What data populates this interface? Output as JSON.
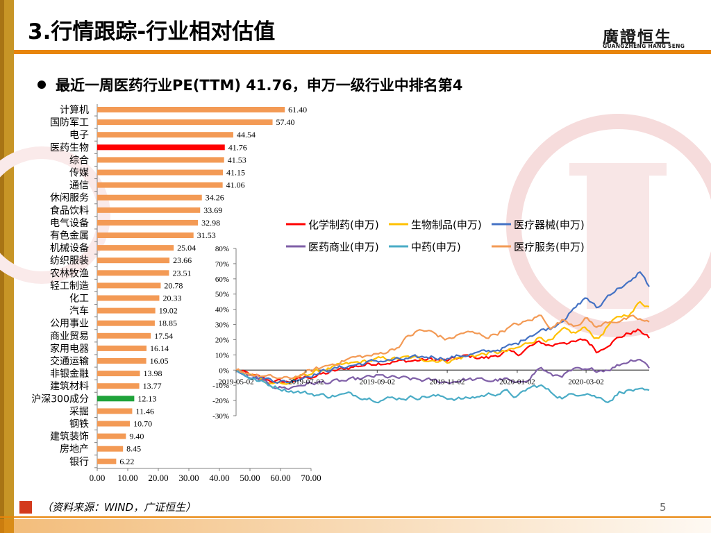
{
  "slide": {
    "title": "3.行情跟踪-行业相对估值",
    "logo_text": "廣證恒生",
    "logo_sub": "GUANGZHENG HANG SENG",
    "bullet": "最近一周医药行业PE(TTM) 41.76，申万一级行业中排名第4",
    "source": "（资料来源：WIND，广证恒生）",
    "page_number": "5"
  },
  "colors": {
    "bar": "#f39a55",
    "highlight_medical": "#ff0000",
    "highlight_hs300": "#1fa33a",
    "accent": "#e8850b",
    "series_chem": "#ff0000",
    "series_bio": "#ffc000",
    "series_device": "#4472c4",
    "series_commerce": "#7f5fa7",
    "series_tcm": "#4aacc6",
    "series_service": "#f39a55"
  },
  "chart_data": [
    {
      "type": "bar",
      "orientation": "horizontal",
      "title": "",
      "categories": [
        "计算机",
        "国防军工",
        "电子",
        "医药生物",
        "综合",
        "传媒",
        "通信",
        "休闲服务",
        "食品饮料",
        "电气设备",
        "有色金属",
        "机械设备",
        "纺织服装",
        "农林牧渔",
        "轻工制造",
        "化工",
        "汽车",
        "公用事业",
        "商业贸易",
        "家用电器",
        "交通运输",
        "非银金融",
        "建筑材料",
        "沪深300成分",
        "采掘",
        "钢铁",
        "建筑装饰",
        "房地产",
        "银行"
      ],
      "values": [
        61.4,
        57.4,
        44.54,
        41.76,
        41.53,
        41.15,
        41.06,
        34.26,
        33.69,
        32.98,
        31.53,
        25.04,
        23.66,
        23.51,
        20.78,
        20.33,
        19.02,
        18.85,
        17.54,
        16.14,
        16.05,
        13.98,
        13.77,
        12.13,
        11.46,
        10.7,
        9.4,
        8.45,
        6.22
      ],
      "value_labels": [
        "61.40",
        "57.40",
        "44.54",
        "41.76",
        "41.53",
        "41.15",
        "41.06",
        "34.26",
        "33.69",
        "32.98",
        "31.53",
        "25.04",
        "23.66",
        "23.51",
        "20.78",
        "20.33",
        "19.02",
        "18.85",
        "17.54",
        "16.14",
        "16.05",
        "13.98",
        "13.77",
        "12.13",
        "11.46",
        "10.70",
        "9.40",
        "8.45",
        "6.22"
      ],
      "highlight": {
        "医药生物": "red",
        "沪深300成分": "green"
      },
      "xlim": [
        0,
        70
      ],
      "xticks": [
        "0.00",
        "10.00",
        "20.00",
        "30.00",
        "40.00",
        "50.00",
        "60.00",
        "70.00"
      ]
    },
    {
      "type": "line",
      "title": "",
      "ylim": [
        -0.3,
        0.8
      ],
      "yticks": [
        "80%",
        "70%",
        "60%",
        "50%",
        "40%",
        "30%",
        "20%",
        "10%",
        "0%",
        "-10%",
        "-20%",
        "-30%"
      ],
      "xticks": [
        "2019-05-02",
        "2019-07-02",
        "2019-09-02",
        "2019-11-02",
        "2020-01-02",
        "2020-03-02"
      ],
      "x_range_days": [
        0,
        360
      ],
      "xtick_days": [
        0,
        61,
        123,
        184,
        245,
        305
      ],
      "legend": [
        "化学制药(申万)",
        "生物制品(申万)",
        "医疗器械(申万)",
        "医药商业(申万)",
        "中药(申万)",
        "医疗服务(申万)"
      ],
      "legend_position": "top-right",
      "series": [
        {
          "name": "化学制药(申万)",
          "anchors": [
            [
              0,
              0
            ],
            [
              15,
              -0.04
            ],
            [
              30,
              -0.07
            ],
            [
              45,
              -0.08
            ],
            [
              60,
              -0.05
            ],
            [
              80,
              -0.02
            ],
            [
              100,
              0.02
            ],
            [
              123,
              0.05
            ],
            [
              150,
              0.06
            ],
            [
              170,
              0.07
            ],
            [
              184,
              0.06
            ],
            [
              200,
              0.09
            ],
            [
              220,
              0.08
            ],
            [
              235,
              0.12
            ],
            [
              245,
              0.1
            ],
            [
              255,
              0.15
            ],
            [
              265,
              0.18
            ],
            [
              275,
              0.16
            ],
            [
              285,
              0.19
            ],
            [
              295,
              0.18
            ],
            [
              305,
              0.2
            ],
            [
              315,
              0.12
            ],
            [
              325,
              0.18
            ],
            [
              335,
              0.22
            ],
            [
              345,
              0.25
            ],
            [
              352,
              0.26
            ],
            [
              360,
              0.21
            ]
          ]
        },
        {
          "name": "生物制品(申万)",
          "anchors": [
            [
              0,
              0
            ],
            [
              15,
              -0.04
            ],
            [
              30,
              -0.08
            ],
            [
              45,
              -0.09
            ],
            [
              60,
              -0.03
            ],
            [
              80,
              0.01
            ],
            [
              100,
              0.04
            ],
            [
              123,
              0.07
            ],
            [
              150,
              0.08
            ],
            [
              170,
              0.07
            ],
            [
              184,
              0.06
            ],
            [
              200,
              0.09
            ],
            [
              220,
              0.11
            ],
            [
              235,
              0.12
            ],
            [
              245,
              0.14
            ],
            [
              255,
              0.18
            ],
            [
              265,
              0.22
            ],
            [
              275,
              0.19
            ],
            [
              285,
              0.26
            ],
            [
              295,
              0.24
            ],
            [
              305,
              0.28
            ],
            [
              315,
              0.2
            ],
            [
              325,
              0.3
            ],
            [
              335,
              0.35
            ],
            [
              345,
              0.38
            ],
            [
              352,
              0.45
            ],
            [
              360,
              0.42
            ]
          ]
        },
        {
          "name": "医疗器械(申万)",
          "anchors": [
            [
              0,
              0
            ],
            [
              15,
              -0.04
            ],
            [
              30,
              -0.06
            ],
            [
              45,
              -0.08
            ],
            [
              60,
              -0.04
            ],
            [
              80,
              0.0
            ],
            [
              100,
              0.03
            ],
            [
              123,
              0.06
            ],
            [
              150,
              0.07
            ],
            [
              170,
              0.09
            ],
            [
              184,
              0.08
            ],
            [
              200,
              0.1
            ],
            [
              220,
              0.12
            ],
            [
              235,
              0.15
            ],
            [
              245,
              0.17
            ],
            [
              255,
              0.23
            ],
            [
              265,
              0.26
            ],
            [
              275,
              0.28
            ],
            [
              285,
              0.34
            ],
            [
              295,
              0.4
            ],
            [
              305,
              0.48
            ],
            [
              315,
              0.4
            ],
            [
              325,
              0.5
            ],
            [
              335,
              0.55
            ],
            [
              345,
              0.58
            ],
            [
              352,
              0.65
            ],
            [
              360,
              0.55
            ]
          ]
        },
        {
          "name": "医药商业(申万)",
          "anchors": [
            [
              0,
              0
            ],
            [
              15,
              -0.05
            ],
            [
              30,
              -0.1
            ],
            [
              45,
              -0.12
            ],
            [
              60,
              -0.09
            ],
            [
              80,
              -0.08
            ],
            [
              100,
              -0.07
            ],
            [
              123,
              -0.04
            ],
            [
              150,
              -0.06
            ],
            [
              170,
              -0.07
            ],
            [
              184,
              -0.08
            ],
            [
              200,
              -0.06
            ],
            [
              220,
              -0.07
            ],
            [
              235,
              -0.06
            ],
            [
              245,
              -0.1
            ],
            [
              255,
              -0.05
            ],
            [
              265,
              0.02
            ],
            [
              275,
              -0.04
            ],
            [
              285,
              -0.03
            ],
            [
              295,
              0.0
            ],
            [
              305,
              -0.01
            ],
            [
              315,
              0.0
            ],
            [
              325,
              0.01
            ],
            [
              335,
              0.04
            ],
            [
              345,
              0.07
            ],
            [
              352,
              0.08
            ],
            [
              360,
              0.02
            ]
          ]
        },
        {
          "name": "中药(申万)",
          "anchors": [
            [
              0,
              0
            ],
            [
              15,
              -0.06
            ],
            [
              30,
              -0.1
            ],
            [
              45,
              -0.13
            ],
            [
              60,
              -0.15
            ],
            [
              80,
              -0.17
            ],
            [
              100,
              -0.16
            ],
            [
              123,
              -0.19
            ],
            [
              150,
              -0.18
            ],
            [
              170,
              -0.17
            ],
            [
              184,
              -0.18
            ],
            [
              200,
              -0.19
            ],
            [
              220,
              -0.16
            ],
            [
              235,
              -0.14
            ],
            [
              245,
              -0.18
            ],
            [
              255,
              -0.12
            ],
            [
              265,
              -0.1
            ],
            [
              275,
              -0.15
            ],
            [
              285,
              -0.18
            ],
            [
              295,
              -0.16
            ],
            [
              305,
              -0.14
            ],
            [
              315,
              -0.18
            ],
            [
              325,
              -0.2
            ],
            [
              335,
              -0.14
            ],
            [
              345,
              -0.13
            ],
            [
              352,
              -0.14
            ],
            [
              360,
              -0.15
            ]
          ]
        },
        {
          "name": "医疗服务(申万)",
          "anchors": [
            [
              0,
              0
            ],
            [
              15,
              -0.03
            ],
            [
              30,
              -0.05
            ],
            [
              45,
              -0.06
            ],
            [
              60,
              -0.02
            ],
            [
              80,
              0.03
            ],
            [
              100,
              0.08
            ],
            [
              123,
              0.1
            ],
            [
              140,
              0.15
            ],
            [
              150,
              0.22
            ],
            [
              160,
              0.26
            ],
            [
              170,
              0.25
            ],
            [
              184,
              0.2
            ],
            [
              200,
              0.25
            ],
            [
              220,
              0.22
            ],
            [
              235,
              0.27
            ],
            [
              245,
              0.3
            ],
            [
              255,
              0.32
            ],
            [
              265,
              0.36
            ],
            [
              275,
              0.28
            ],
            [
              285,
              0.33
            ],
            [
              295,
              0.3
            ],
            [
              305,
              0.34
            ],
            [
              315,
              0.28
            ],
            [
              325,
              0.32
            ],
            [
              335,
              0.33
            ],
            [
              345,
              0.34
            ],
            [
              352,
              0.33
            ],
            [
              360,
              0.31
            ]
          ]
        }
      ]
    }
  ]
}
